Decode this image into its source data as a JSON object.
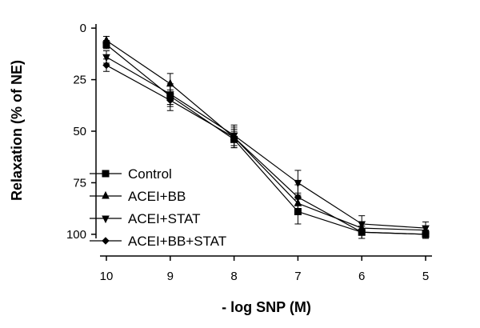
{
  "chart_data": {
    "type": "line",
    "xlabel": "- log SNP (M)",
    "ylabel": "Relaxation (% of NE)",
    "x": [
      10,
      9,
      8,
      7,
      6,
      5
    ],
    "xlim": [
      10.1,
      4.9
    ],
    "x_reversed": true,
    "ylim": [
      -2,
      102
    ],
    "y_reversed": true,
    "yticks": [
      0,
      25,
      50,
      75,
      100
    ],
    "xticks": [
      10,
      9,
      8,
      7,
      6,
      5
    ],
    "grid": false,
    "legend_position": "bottom-left",
    "series": [
      {
        "name": "Control",
        "marker": "square",
        "values": [
          8,
          33,
          54,
          89,
          99,
          100
        ],
        "error": [
          2,
          5,
          4,
          6,
          3,
          2
        ]
      },
      {
        "name": "ACEI+BB",
        "marker": "triangle-up",
        "values": [
          6,
          27,
          53,
          85,
          97,
          98
        ],
        "error": [
          2,
          5,
          4,
          5,
          3,
          2
        ]
      },
      {
        "name": "ACEI+STAT",
        "marker": "triangle-down",
        "values": [
          14,
          32,
          52,
          75,
          95,
          97
        ],
        "error": [
          3,
          5,
          5,
          6,
          4,
          3
        ]
      },
      {
        "name": "ACEI+BB+STAT",
        "marker": "diamond",
        "values": [
          18,
          35,
          53,
          82,
          99,
          100
        ],
        "error": [
          3,
          5,
          5,
          6,
          3,
          2
        ]
      }
    ]
  }
}
